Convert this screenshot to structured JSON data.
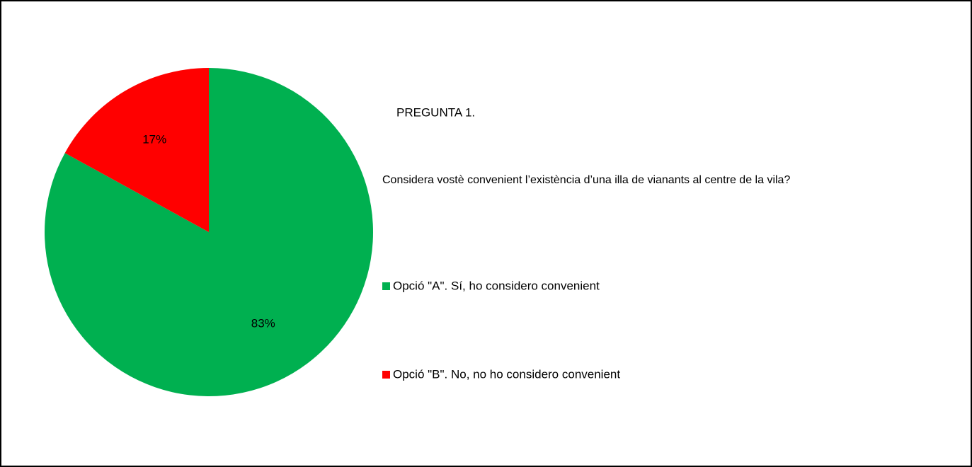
{
  "chart_data": {
    "type": "pie",
    "title": "PREGUNTA 1.",
    "subtitle": "Considera vostè convenient l’existència d’una illa de vianants al centre de la vila?",
    "categories": [
      "Opció \"A\". Sí, ho considero convenient",
      "Opció \"B\". No, no ho considero convenient"
    ],
    "values": [
      83,
      17
    ],
    "value_labels": [
      "83%",
      "17%"
    ],
    "colors": [
      "#00b050",
      "#ff0000"
    ]
  }
}
